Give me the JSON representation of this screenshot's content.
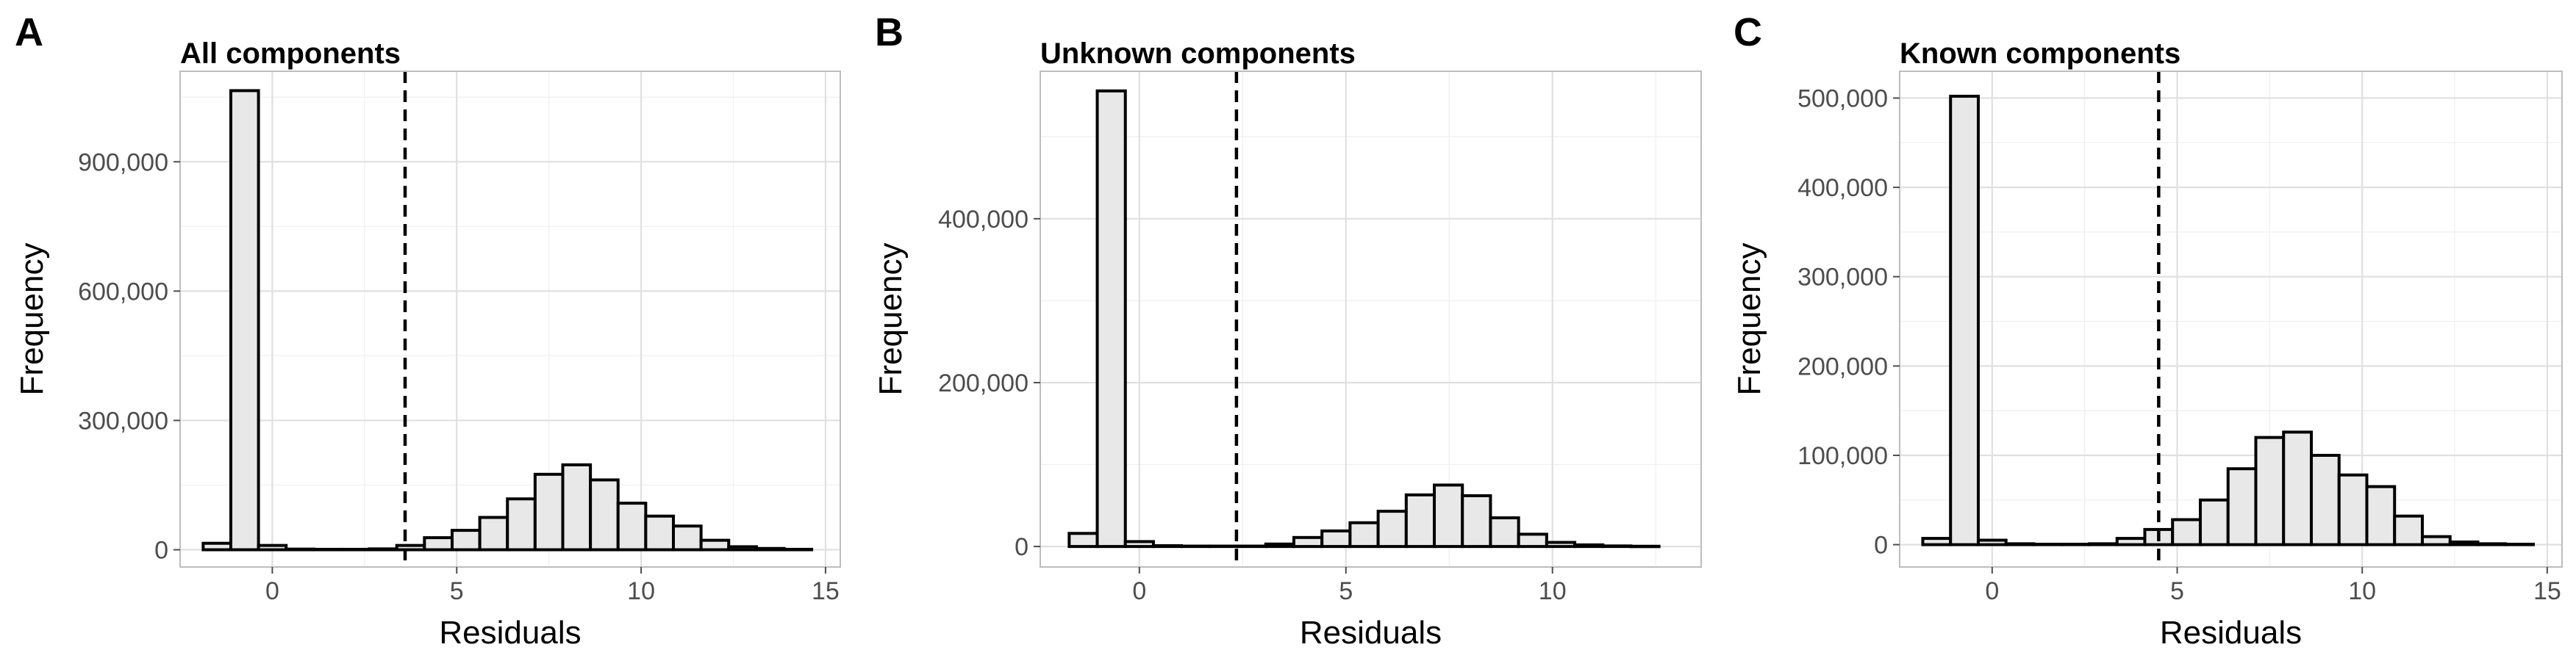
{
  "chart_data": [
    {
      "type": "bar",
      "panel_label": "A",
      "title": "All components",
      "xlabel": "Residuals",
      "ylabel": "Frequency",
      "x_range": [
        -2.5,
        15.4
      ],
      "y_range": [
        -40000,
        1110000
      ],
      "x_ticks": [
        0,
        5,
        10,
        15
      ],
      "x_tick_labels": [
        "0",
        "5",
        "10",
        "15"
      ],
      "y_ticks": [
        0,
        300000,
        600000,
        900000
      ],
      "y_tick_labels": [
        "0",
        "300,000",
        "600,000",
        "900,000"
      ],
      "bin_width": 0.75,
      "bin_centers": [
        -1.5,
        -0.75,
        0,
        0.75,
        1.5,
        2.25,
        3,
        3.75,
        4.5,
        5.25,
        6,
        6.75,
        7.5,
        8.25,
        9,
        9.75,
        10.5,
        11.25,
        12,
        12.75,
        13.5,
        14.25
      ],
      "values": [
        15000,
        1065000,
        10000,
        1500,
        1000,
        1000,
        2000,
        10000,
        28000,
        45000,
        75000,
        118000,
        175000,
        197000,
        162000,
        108000,
        78000,
        55000,
        22000,
        7000,
        3000,
        1000
      ],
      "vline": {
        "x": 3.6,
        "style": "dashed"
      },
      "grid": true
    },
    {
      "type": "bar",
      "panel_label": "B",
      "title": "Unknown components",
      "xlabel": "Residuals",
      "ylabel": "Frequency",
      "x_range": [
        -2.4,
        13.6
      ],
      "y_range": [
        -25000,
        580000
      ],
      "x_ticks": [
        0,
        5,
        10
      ],
      "x_tick_labels": [
        "0",
        "5",
        "10"
      ],
      "y_ticks": [
        0,
        200000,
        400000
      ],
      "y_tick_labels": [
        "0",
        "200,000",
        "400,000"
      ],
      "bin_width": 0.68,
      "bin_centers": [
        -1.36,
        -0.68,
        0,
        0.68,
        1.36,
        2.04,
        2.72,
        3.4,
        4.08,
        4.76,
        5.44,
        6.12,
        6.8,
        7.48,
        8.16,
        8.84,
        9.52,
        10.2,
        10.88,
        11.56,
        12.24
      ],
      "values": [
        16000,
        556000,
        6000,
        1000,
        500,
        500,
        500,
        3000,
        11000,
        19000,
        29000,
        43000,
        63000,
        75000,
        62000,
        35000,
        15000,
        5000,
        2000,
        700,
        300
      ],
      "vline": {
        "x": 2.35,
        "style": "dashed"
      },
      "grid": true
    },
    {
      "type": "bar",
      "panel_label": "C",
      "title": "Known components",
      "xlabel": "Residuals",
      "ylabel": "Frequency",
      "x_range": [
        -2.5,
        15.4
      ],
      "y_range": [
        -25000,
        530000
      ],
      "x_ticks": [
        0,
        5,
        10,
        15
      ],
      "x_tick_labels": [
        "0",
        "5",
        "10",
        "15"
      ],
      "y_ticks": [
        0,
        100000,
        200000,
        300000,
        400000,
        500000
      ],
      "y_tick_labels": [
        "0",
        "100,000",
        "200,000",
        "300,000",
        "400,000",
        "500,000"
      ],
      "bin_width": 0.75,
      "bin_centers": [
        -1.5,
        -0.75,
        0,
        0.75,
        1.5,
        2.25,
        3,
        3.75,
        4.5,
        5.25,
        6,
        6.75,
        7.5,
        8.25,
        9,
        9.75,
        10.5,
        11.25,
        12,
        12.75,
        13.5,
        14.25
      ],
      "values": [
        7000,
        502000,
        5000,
        1000,
        500,
        500,
        1000,
        7000,
        17000,
        28000,
        50000,
        85000,
        120000,
        126000,
        100000,
        78000,
        65000,
        32000,
        9000,
        3000,
        1000,
        500
      ],
      "vline": {
        "x": 4.5,
        "style": "dashed"
      },
      "grid": true
    }
  ]
}
